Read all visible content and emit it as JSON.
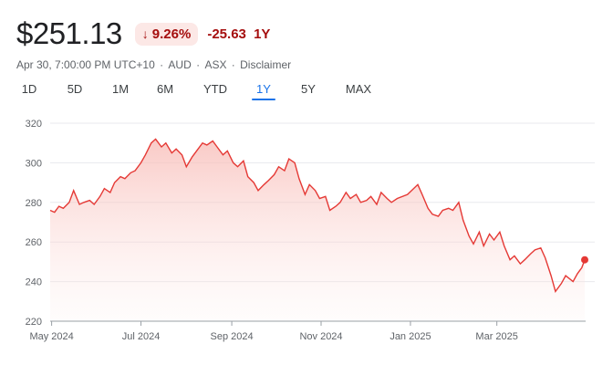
{
  "quote": {
    "price": "$251.13",
    "change_pct": "9.26%",
    "change_abs": "-25.63",
    "period": "1Y",
    "timestamp": "Apr 30, 7:00:00 PM UTC+10",
    "currency": "AUD",
    "exchange": "ASX",
    "disclaimer": "Disclaimer",
    "arrow_icon": "arrow-down-icon",
    "negative_color": "#a50e0e",
    "negative_bg": "#fce8e6",
    "line_color": "#e53935"
  },
  "tabs": [
    {
      "label": "1D",
      "active": false
    },
    {
      "label": "5D",
      "active": false
    },
    {
      "label": "1M",
      "active": false
    },
    {
      "label": "6M",
      "active": false
    },
    {
      "label": "YTD",
      "active": false
    },
    {
      "label": "1Y",
      "active": true
    },
    {
      "label": "5Y",
      "active": false
    },
    {
      "label": "MAX",
      "active": false
    }
  ],
  "chart_data": {
    "type": "area",
    "ylim": [
      220,
      320
    ],
    "y_ticks": [
      220,
      240,
      260,
      280,
      300,
      320
    ],
    "x_range": [
      "2024-04-30",
      "2025-04-30"
    ],
    "x_ticks": [
      {
        "label": "May 2024",
        "date": "2024-05-01"
      },
      {
        "label": "Jul 2024",
        "date": "2024-07-01"
      },
      {
        "label": "Sep 2024",
        "date": "2024-09-01"
      },
      {
        "label": "Nov 2024",
        "date": "2024-11-01"
      },
      {
        "label": "Jan 2025",
        "date": "2025-01-01"
      },
      {
        "label": "Mar 2025",
        "date": "2025-03-01"
      }
    ],
    "grid": true,
    "series": [
      {
        "x": [
          "2024-04-30",
          "2024-05-03",
          "2024-05-06",
          "2024-05-09",
          "2024-05-13",
          "2024-05-16",
          "2024-05-20",
          "2024-05-23",
          "2024-05-27",
          "2024-05-30",
          "2024-06-03",
          "2024-06-06",
          "2024-06-10",
          "2024-06-13",
          "2024-06-17",
          "2024-06-20",
          "2024-06-24",
          "2024-06-27",
          "2024-07-01",
          "2024-07-04",
          "2024-07-08",
          "2024-07-11",
          "2024-07-15",
          "2024-07-18",
          "2024-07-22",
          "2024-07-25",
          "2024-07-29",
          "2024-08-01",
          "2024-08-05",
          "2024-08-08",
          "2024-08-12",
          "2024-08-15",
          "2024-08-19",
          "2024-08-22",
          "2024-08-26",
          "2024-08-29",
          "2024-09-02",
          "2024-09-05",
          "2024-09-09",
          "2024-09-12",
          "2024-09-16",
          "2024-09-19",
          "2024-09-23",
          "2024-09-26",
          "2024-09-30",
          "2024-10-03",
          "2024-10-07",
          "2024-10-10",
          "2024-10-14",
          "2024-10-17",
          "2024-10-21",
          "2024-10-24",
          "2024-10-28",
          "2024-10-31",
          "2024-11-04",
          "2024-11-07",
          "2024-11-11",
          "2024-11-14",
          "2024-11-18",
          "2024-11-21",
          "2024-11-25",
          "2024-11-28",
          "2024-12-02",
          "2024-12-05",
          "2024-12-09",
          "2024-12-12",
          "2024-12-16",
          "2024-12-19",
          "2024-12-23",
          "2024-12-30",
          "2025-01-06",
          "2025-01-09",
          "2025-01-13",
          "2025-01-16",
          "2025-01-20",
          "2025-01-23",
          "2025-01-27",
          "2025-01-30",
          "2025-02-03",
          "2025-02-06",
          "2025-02-10",
          "2025-02-13",
          "2025-02-17",
          "2025-02-20",
          "2025-02-24",
          "2025-02-27",
          "2025-03-03",
          "2025-03-06",
          "2025-03-10",
          "2025-03-13",
          "2025-03-17",
          "2025-03-20",
          "2025-03-24",
          "2025-03-27",
          "2025-03-31",
          "2025-04-03",
          "2025-04-07",
          "2025-04-10",
          "2025-04-14",
          "2025-04-17",
          "2025-04-22",
          "2025-04-25",
          "2025-04-28",
          "2025-04-30"
        ],
        "values": [
          276,
          275,
          278,
          277,
          280,
          286,
          279,
          280,
          281,
          279,
          283,
          287,
          285,
          290,
          293,
          292,
          295,
          296,
          300,
          304,
          310,
          312,
          308,
          310,
          305,
          307,
          304,
          298,
          303,
          306,
          310,
          309,
          311,
          308,
          304,
          306,
          300,
          298,
          301,
          293,
          290,
          286,
          289,
          291,
          294,
          298,
          296,
          302,
          300,
          292,
          284,
          289,
          286,
          282,
          283,
          276,
          278,
          280,
          285,
          282,
          284,
          280,
          281,
          283,
          279,
          285,
          282,
          280,
          282,
          284,
          289,
          284,
          277,
          274,
          273,
          276,
          277,
          276,
          280,
          271,
          263,
          259,
          265,
          258,
          264,
          261,
          265,
          258,
          251,
          253,
          249,
          251,
          254,
          256,
          257,
          252,
          243,
          235,
          239,
          243,
          240,
          244,
          247,
          251
        ]
      }
    ]
  }
}
